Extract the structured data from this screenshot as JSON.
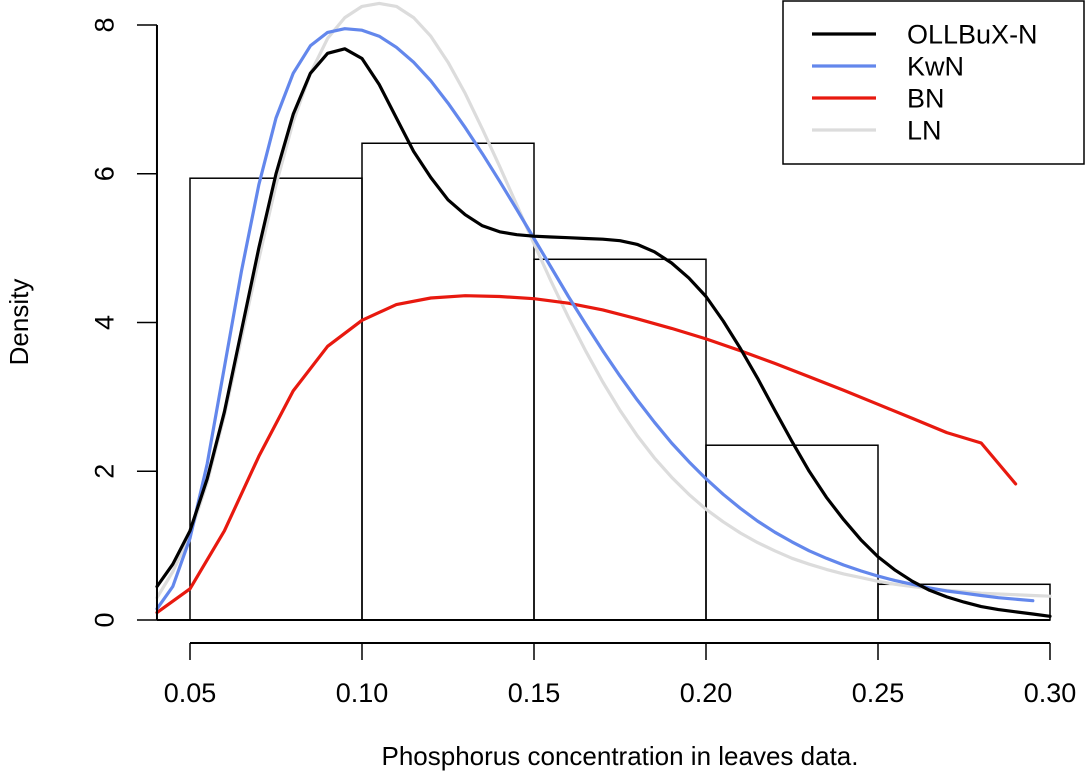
{
  "chart_data": {
    "type": "histogram-with-density-lines",
    "title": "",
    "xlabel": "Phosphorus concentration in leaves data.",
    "ylabel": "Density",
    "xlim": [
      0.0404,
      0.3
    ],
    "ylim": [
      0,
      8
    ],
    "x_ticks": [
      0.05,
      0.1,
      0.15,
      0.2,
      0.25,
      0.3
    ],
    "x_tick_labels": [
      "0.05",
      "0.10",
      "0.15",
      "0.20",
      "0.25",
      "0.30"
    ],
    "y_ticks": [
      0,
      2,
      4,
      6,
      8
    ],
    "y_tick_labels": [
      "0",
      "2",
      "4",
      "6",
      "8"
    ],
    "grid": false,
    "legend_position": "top-right",
    "histogram": {
      "bins": [
        [
          0.05,
          0.1
        ],
        [
          0.1,
          0.15
        ],
        [
          0.15,
          0.2
        ],
        [
          0.2,
          0.25
        ],
        [
          0.25,
          0.3
        ]
      ],
      "density": [
        5.94,
        6.41,
        4.85,
        2.35,
        0.48
      ]
    },
    "series": [
      {
        "name": "OLLBuX-N",
        "color": "#000000",
        "x": [
          0.0404,
          0.045,
          0.05,
          0.055,
          0.06,
          0.065,
          0.07,
          0.075,
          0.08,
          0.085,
          0.09,
          0.095,
          0.1,
          0.105,
          0.11,
          0.115,
          0.12,
          0.125,
          0.13,
          0.135,
          0.14,
          0.145,
          0.15,
          0.155,
          0.16,
          0.165,
          0.17,
          0.175,
          0.18,
          0.185,
          0.19,
          0.195,
          0.2,
          0.205,
          0.21,
          0.215,
          0.22,
          0.225,
          0.23,
          0.235,
          0.24,
          0.245,
          0.25,
          0.255,
          0.26,
          0.265,
          0.27,
          0.275,
          0.28,
          0.285,
          0.29,
          0.295,
          0.3
        ],
        "y": [
          0.45,
          0.75,
          1.2,
          1.9,
          2.8,
          3.9,
          5.0,
          6.0,
          6.8,
          7.35,
          7.62,
          7.68,
          7.55,
          7.2,
          6.75,
          6.3,
          5.95,
          5.65,
          5.45,
          5.3,
          5.22,
          5.18,
          5.16,
          5.15,
          5.14,
          5.13,
          5.12,
          5.1,
          5.05,
          4.95,
          4.8,
          4.6,
          4.35,
          4.02,
          3.65,
          3.25,
          2.82,
          2.4,
          2.0,
          1.65,
          1.35,
          1.08,
          0.85,
          0.67,
          0.52,
          0.4,
          0.31,
          0.24,
          0.18,
          0.14,
          0.11,
          0.08,
          0.05
        ]
      },
      {
        "name": "KwN",
        "color": "#6387ec",
        "x": [
          0.0404,
          0.045,
          0.05,
          0.055,
          0.06,
          0.065,
          0.07,
          0.075,
          0.08,
          0.085,
          0.09,
          0.095,
          0.1,
          0.105,
          0.11,
          0.115,
          0.12,
          0.125,
          0.13,
          0.135,
          0.14,
          0.145,
          0.15,
          0.155,
          0.16,
          0.165,
          0.17,
          0.175,
          0.18,
          0.185,
          0.19,
          0.195,
          0.2,
          0.205,
          0.21,
          0.215,
          0.22,
          0.225,
          0.23,
          0.235,
          0.24,
          0.245,
          0.25,
          0.255,
          0.26,
          0.265,
          0.27,
          0.275,
          0.28,
          0.285,
          0.29,
          0.295
        ],
        "y": [
          0.15,
          0.45,
          1.1,
          2.1,
          3.4,
          4.7,
          5.85,
          6.75,
          7.35,
          7.72,
          7.9,
          7.95,
          7.93,
          7.85,
          7.7,
          7.5,
          7.25,
          6.95,
          6.62,
          6.27,
          5.9,
          5.52,
          5.13,
          4.74,
          4.35,
          3.98,
          3.62,
          3.28,
          2.96,
          2.66,
          2.38,
          2.13,
          1.9,
          1.69,
          1.5,
          1.33,
          1.18,
          1.05,
          0.93,
          0.83,
          0.74,
          0.66,
          0.59,
          0.53,
          0.48,
          0.43,
          0.39,
          0.36,
          0.33,
          0.3,
          0.28,
          0.26
        ]
      },
      {
        "name": "BN",
        "color": "#e8190f",
        "x": [
          0.0404,
          0.05,
          0.06,
          0.07,
          0.08,
          0.09,
          0.1,
          0.11,
          0.12,
          0.13,
          0.14,
          0.15,
          0.16,
          0.17,
          0.18,
          0.19,
          0.2,
          0.21,
          0.22,
          0.23,
          0.24,
          0.25,
          0.26,
          0.27,
          0.28,
          0.29
        ],
        "y": [
          0.1,
          0.42,
          1.2,
          2.2,
          3.08,
          3.68,
          4.03,
          4.24,
          4.33,
          4.36,
          4.35,
          4.32,
          4.26,
          4.17,
          4.05,
          3.92,
          3.78,
          3.62,
          3.45,
          3.27,
          3.09,
          2.9,
          2.71,
          2.52,
          2.38,
          1.83
        ]
      },
      {
        "name": "LN",
        "color": "#dcdcdc",
        "x": [
          0.0404,
          0.045,
          0.05,
          0.055,
          0.06,
          0.065,
          0.07,
          0.075,
          0.08,
          0.085,
          0.09,
          0.095,
          0.1,
          0.105,
          0.11,
          0.115,
          0.12,
          0.125,
          0.13,
          0.135,
          0.14,
          0.145,
          0.15,
          0.155,
          0.16,
          0.165,
          0.17,
          0.175,
          0.18,
          0.185,
          0.19,
          0.195,
          0.2,
          0.205,
          0.21,
          0.215,
          0.22,
          0.225,
          0.23,
          0.235,
          0.24,
          0.245,
          0.25,
          0.255,
          0.26,
          0.265,
          0.27,
          0.275,
          0.28,
          0.285,
          0.29,
          0.295,
          0.3
        ],
        "y": [
          0.3,
          0.65,
          1.15,
          1.85,
          2.75,
          3.8,
          4.85,
          5.85,
          6.7,
          7.35,
          7.82,
          8.1,
          8.25,
          8.29,
          8.25,
          8.1,
          7.85,
          7.5,
          7.08,
          6.6,
          6.1,
          5.58,
          5.06,
          4.55,
          4.07,
          3.62,
          3.2,
          2.82,
          2.48,
          2.18,
          1.92,
          1.69,
          1.49,
          1.32,
          1.17,
          1.04,
          0.93,
          0.83,
          0.75,
          0.68,
          0.62,
          0.57,
          0.52,
          0.48,
          0.45,
          0.42,
          0.4,
          0.38,
          0.36,
          0.35,
          0.34,
          0.33,
          0.32
        ]
      }
    ]
  }
}
